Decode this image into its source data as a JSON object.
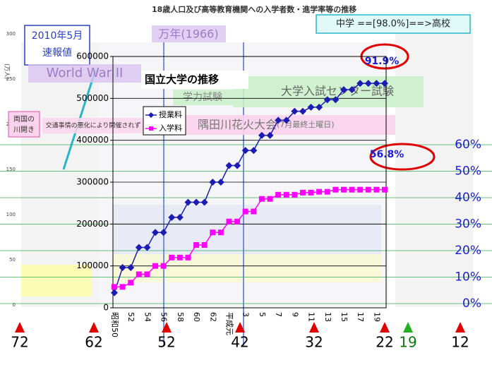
{
  "page_title": "18歳人口及び高等教育機関への入学者数・進学率等の推移",
  "background_axis": {
    "unit": "(万人)",
    "ticks": [
      300,
      250,
      200,
      150,
      100,
      50,
      0
    ],
    "lim": [
      0,
      300
    ]
  },
  "chart_data": {
    "type": "line",
    "title": "国立大学の推移",
    "categories": [
      "昭和50",
      null,
      "52",
      null,
      "54",
      null,
      "56",
      null,
      "58",
      null,
      "60",
      null,
      "62",
      null,
      "平成元",
      null,
      "3",
      null,
      "5",
      null,
      "7",
      null,
      "9",
      null,
      "11",
      null,
      "13",
      null,
      "15",
      null,
      "17",
      null,
      "19",
      null
    ],
    "series": [
      {
        "name": "授業料",
        "color": "#1c1cb4",
        "marker": "diamond",
        "values": [
          36000,
          96000,
          96000,
          144000,
          144000,
          180000,
          180000,
          216000,
          216000,
          252000,
          252000,
          252000,
          300000,
          300000,
          339600,
          339600,
          375600,
          375600,
          411600,
          411600,
          447600,
          447600,
          469200,
          469200,
          478800,
          478800,
          496800,
          496800,
          520800,
          520800,
          535800,
          535800,
          535800,
          535800
        ]
      },
      {
        "name": "入学料",
        "color": "#ff00ff",
        "marker": "square",
        "values": [
          50000,
          50000,
          60000,
          80000,
          80000,
          100000,
          100000,
          120000,
          120000,
          120000,
          150000,
          150000,
          180000,
          180000,
          206000,
          206000,
          230000,
          230000,
          260000,
          260000,
          270000,
          270000,
          270000,
          275000,
          275000,
          277000,
          277000,
          282000,
          282000,
          282000,
          282000,
          282000,
          282000,
          282000
        ]
      }
    ],
    "ylim": [
      0,
      600000
    ],
    "yticks": [
      0,
      100000,
      200000,
      300000,
      400000,
      500000,
      600000
    ],
    "grid": true
  },
  "percent_scale": {
    "lim": [
      0,
      60
    ],
    "ticks": [
      {
        "value": 0,
        "label": "0%"
      },
      {
        "value": 10,
        "label": "10%"
      },
      {
        "value": 20,
        "label": "20%"
      },
      {
        "value": 30,
        "label": "30%"
      },
      {
        "value": 40,
        "label": "40%"
      },
      {
        "value": 50,
        "label": "50%"
      },
      {
        "value": 60,
        "label": "60%"
      }
    ]
  },
  "annotations": {
    "preliminary": [
      "2010年5月",
      "速報値"
    ],
    "year_1966": "万年(1966)",
    "war": "World War II",
    "ryogoku": [
      "両国の",
      "川開き"
    ],
    "cancelled": "交通事情の悪化により開催されず",
    "exam_old": "学力試験",
    "exam_center": "大学入試センター試験",
    "fireworks": "隅田川花火大会",
    "fireworks_note": "(7月最終土曜日)",
    "junior_high": "中学 ==[98.0%]==>高校",
    "rate_1": "91.9%",
    "rate_2": "56.8%"
  },
  "age_markers": [
    {
      "label": "72",
      "color": "#e00000"
    },
    {
      "label": "62",
      "color": "#e00000"
    },
    {
      "label": "52",
      "color": "#e00000"
    },
    {
      "label": "42",
      "color": "#e00000"
    },
    {
      "label": "32",
      "color": "#e00000"
    },
    {
      "label": "22",
      "color": "#e00000"
    },
    {
      "label": "19",
      "color": "#20b020"
    },
    {
      "label": "12",
      "color": "#e00000"
    }
  ]
}
